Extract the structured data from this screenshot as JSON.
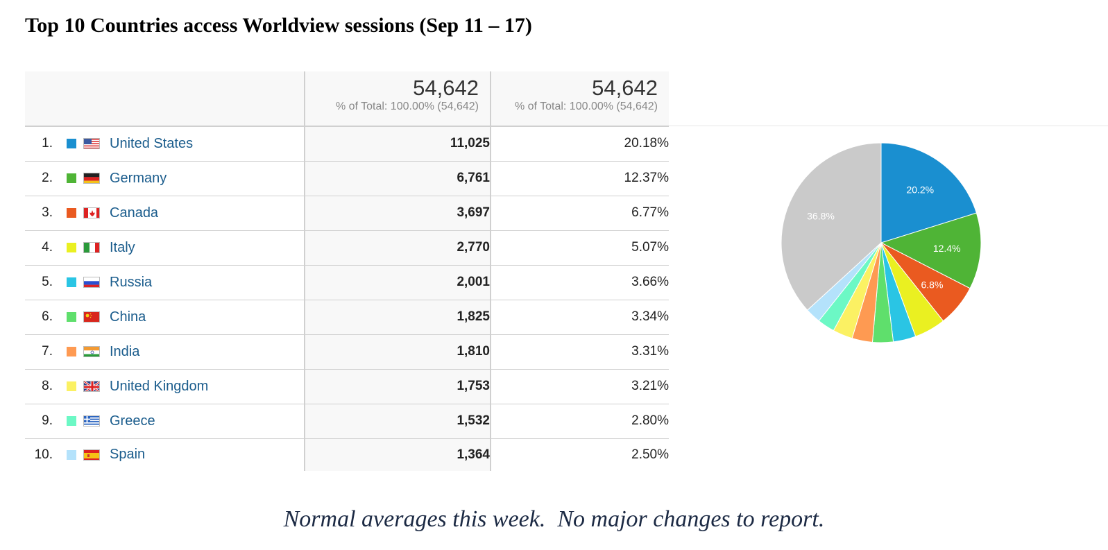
{
  "title": "Top 10 Countries access Worldview sessions (Sep 11 – 17)",
  "header": {
    "col1_total": "54,642",
    "col1_sub": "% of Total: 100.00% (54,642)",
    "col2_total": "54,642",
    "col2_sub": "% of Total: 100.00% (54,642)"
  },
  "rows": [
    {
      "rank": "1.",
      "country": "United States",
      "sessions": "11,025",
      "percent": "20.18%",
      "color": "#1a8fd0",
      "flag": "flag-us-icon"
    },
    {
      "rank": "2.",
      "country": "Germany",
      "sessions": "6,761",
      "percent": "12.37%",
      "color": "#4fb436",
      "flag": "flag-de-icon"
    },
    {
      "rank": "3.",
      "country": "Canada",
      "sessions": "3,697",
      "percent": "6.77%",
      "color": "#ea5a20",
      "flag": "flag-ca-icon"
    },
    {
      "rank": "4.",
      "country": "Italy",
      "sessions": "2,770",
      "percent": "5.07%",
      "color": "#eaf021",
      "flag": "flag-it-icon"
    },
    {
      "rank": "5.",
      "country": "Russia",
      "sessions": "2,001",
      "percent": "3.66%",
      "color": "#2ac5e4",
      "flag": "flag-ru-icon"
    },
    {
      "rank": "6.",
      "country": "China",
      "sessions": "1,825",
      "percent": "3.34%",
      "color": "#5fdf6c",
      "flag": "flag-cn-icon"
    },
    {
      "rank": "7.",
      "country": "India",
      "sessions": "1,810",
      "percent": "3.31%",
      "color": "#fe9a52",
      "flag": "flag-in-icon"
    },
    {
      "rank": "8.",
      "country": "United Kingdom",
      "sessions": "1,753",
      "percent": "3.21%",
      "color": "#fbf163",
      "flag": "flag-gb-icon"
    },
    {
      "rank": "9.",
      "country": "Greece",
      "sessions": "1,532",
      "percent": "2.80%",
      "color": "#6cf8c5",
      "flag": "flag-gr-icon"
    },
    {
      "rank": "10.",
      "country": "Spain",
      "sessions": "1,364",
      "percent": "2.50%",
      "color": "#b4e2fb",
      "flag": "flag-es-icon"
    }
  ],
  "chart_data": {
    "type": "pie",
    "slices": [
      {
        "value": 20.18,
        "color": "#1a8fd0",
        "label": "20.2%"
      },
      {
        "value": 12.37,
        "color": "#4fb436",
        "label": "12.4%"
      },
      {
        "value": 6.77,
        "color": "#ea5a20",
        "label": "6.8%"
      },
      {
        "value": 5.07,
        "color": "#eaf021",
        "label": ""
      },
      {
        "value": 3.66,
        "color": "#2ac5e4",
        "label": ""
      },
      {
        "value": 3.34,
        "color": "#5fdf6c",
        "label": ""
      },
      {
        "value": 3.31,
        "color": "#fe9a52",
        "label": ""
      },
      {
        "value": 3.21,
        "color": "#fbf163",
        "label": ""
      },
      {
        "value": 2.8,
        "color": "#6cf8c5",
        "label": ""
      },
      {
        "value": 2.5,
        "color": "#b4e2fb",
        "label": ""
      },
      {
        "value": 36.79,
        "color": "#cacaca",
        "label": "36.8%"
      }
    ]
  },
  "footer": "Normal averages this week.  No major changes to report."
}
